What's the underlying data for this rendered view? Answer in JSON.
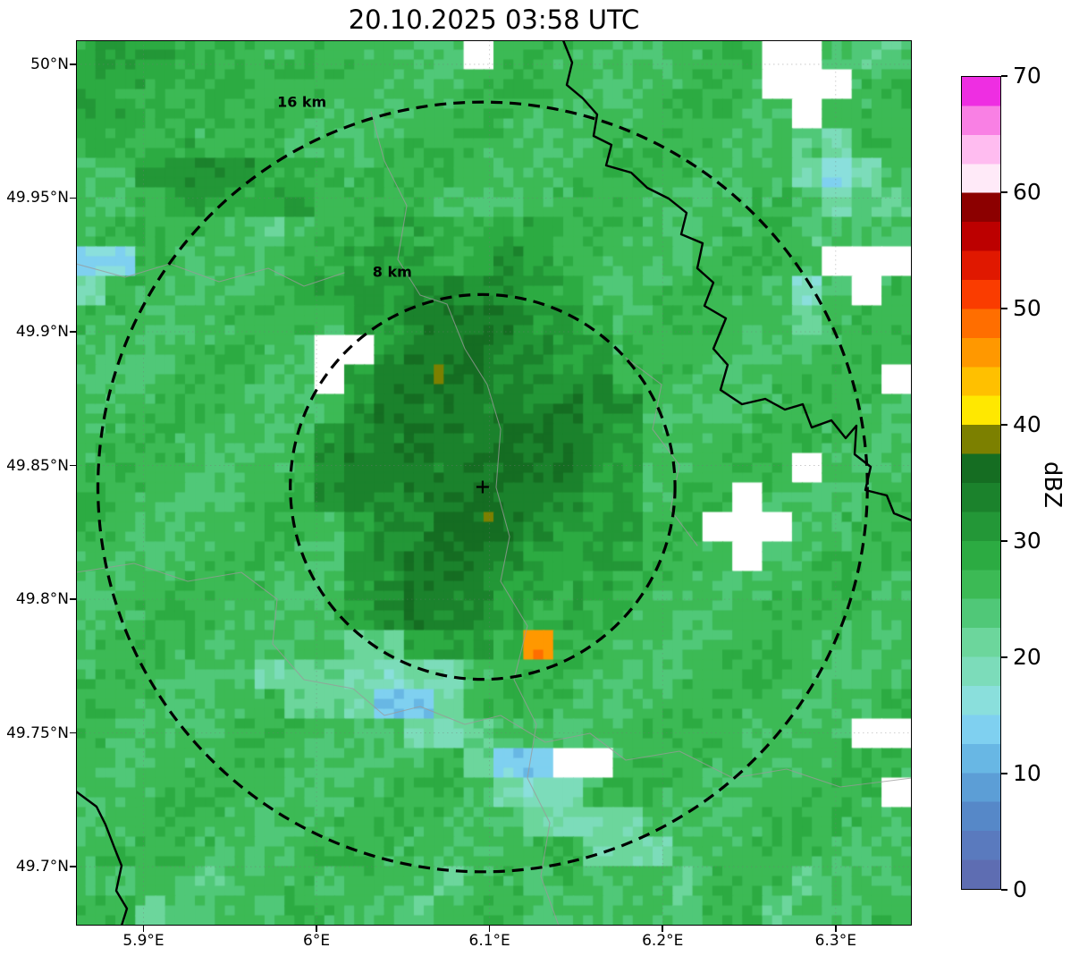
{
  "title": "20.10.2025 03:58 UTC",
  "chart_data": {
    "type": "heatmap",
    "subtype": "weather-radar-reflectivity-map",
    "title": "20.10.2025 03:58 UTC",
    "x_axis": {
      "min": 5.861,
      "max": 6.344,
      "ticks": [
        5.9,
        6.0,
        6.1,
        6.2,
        6.3
      ],
      "tick_labels": [
        "5.9°E",
        "6°E",
        "6.1°E",
        "6.2°E",
        "6.3°E"
      ]
    },
    "y_axis": {
      "min": 49.678,
      "max": 50.009,
      "ticks": [
        50.0,
        49.95,
        49.9,
        49.85,
        49.8,
        49.75,
        49.7
      ],
      "tick_labels": [
        "50°N",
        "49.95°N",
        "49.9°N",
        "49.85°N",
        "49.8°N",
        "49.75°N",
        "49.7°N"
      ]
    },
    "colorbar": {
      "label": "dBZ",
      "min": 0,
      "max": 70,
      "band_size": 2.5,
      "ticks": [
        0,
        10,
        20,
        30,
        40,
        50,
        60,
        70
      ],
      "tick_labels": [
        "0",
        "10",
        "20",
        "30",
        "40",
        "50",
        "60",
        "70"
      ],
      "colors": [
        "#5e6db2",
        "#5a7abe",
        "#5688c8",
        "#5c9ed6",
        "#68b7e4",
        "#7fd0f0",
        "#8adfdc",
        "#7cdcba",
        "#6cd69c",
        "#50c878",
        "#3cba55",
        "#2cab42",
        "#239737",
        "#1b822c",
        "#156d22",
        "#7c8000",
        "#ffe800",
        "#ffc000",
        "#ff9800",
        "#ff6e00",
        "#fa3c00",
        "#e01800",
        "#bc0000",
        "#8c0000",
        "#ffeaf8",
        "#ffbcf0",
        "#f980e4",
        "#ee2ee2"
      ]
    },
    "radar_center": {
      "lon": 6.096,
      "lat": 49.842,
      "marker": "+"
    },
    "range_rings": [
      {
        "label": "8 km",
        "radius_km": 8
      },
      {
        "label": "16 km",
        "radius_km": 16
      }
    ],
    "no_data_color": "#ffffff",
    "reflectivity_grid": {
      "cols": 28,
      "rows": 30,
      "units": "dBZ",
      "legend": {
        ".": 26,
        ",": 23.5,
        "+": 28.5,
        "x": 31,
        "X": 33.5,
        "D": 35,
        "-": 21,
        "t": 19,
        "c": 14,
        "o": 46,
        "w": null
      },
      "rows_data": [
        "++++++.......w.........ww.,,",
        "++++++.................www..",
        "+++++...................w...",
        "++++....................,t..",
        "..xxxx+++...............tct.",
        "...+++xx................,t,,",
        "......,...++++++........,...",
        "cc.......+xx++x+.........www",
        "t.......+xxXXxx++.......t.w.",
        ".........xxXXXXxx+......,...",
        "........wwxXXDXXxx..........",
        "........wxXXDDXXxx.........w",
        ".........xXXDDDXXxx.........",
        "........xxXDDDDXXxx.........",
        "........xXXDDDDXXxx.....w...",
        "........xXXDDDXXXxx...w.....",
        ".........xXXDDXXxxx..www....",
        ".........xXXXXXxxx+...w.....",
        ".........xxXXXxx++..........",
        ".........+xXXXx++...........",
        ".........--+xx+o............",
        "......---tt--...............",
        ".......---cc-...............",
        "...........-t-,...........ww",
        ".............-ccww..........",
        "..............-tt..........w",
        "...............-tt-.........",
        ".................---........",
        ",,..,...,...,..,....,...,...",
        "..,...,....,...,....,..,...."
      ]
    }
  }
}
